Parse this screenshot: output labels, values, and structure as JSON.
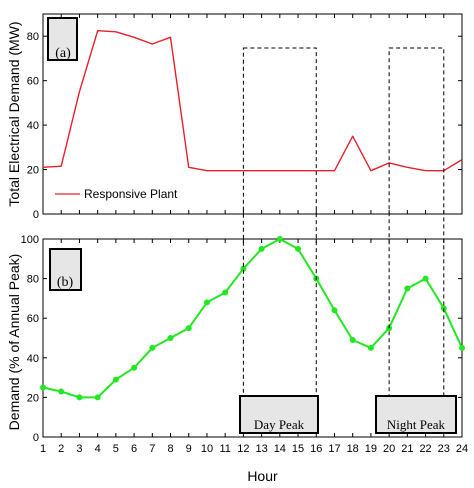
{
  "chart_data": [
    {
      "type": "line",
      "panel_label": "(a)",
      "ylabel": "Total Electrical Demand (MW)",
      "xlim": [
        1,
        24
      ],
      "ylim": [
        0,
        90
      ],
      "yticks": [
        0,
        20,
        40,
        60,
        80
      ],
      "legend": {
        "position": "bottom-left",
        "entries": [
          "Responsive Plant"
        ]
      },
      "series": [
        {
          "name": "Responsive Plant",
          "color": "#e8202a",
          "x": [
            1,
            2,
            3,
            4,
            5,
            6,
            7,
            8,
            9,
            10,
            11,
            12,
            13,
            14,
            15,
            16,
            17,
            18,
            19,
            20,
            21,
            22,
            23,
            24
          ],
          "values": [
            21,
            21.5,
            55,
            82.5,
            82,
            79.5,
            76.5,
            79.5,
            21,
            19.5,
            19.5,
            19.5,
            19.5,
            19.5,
            19.5,
            19.5,
            19.5,
            35,
            19.5,
            23,
            21,
            19.5,
            19.5,
            24.5
          ]
        }
      ]
    },
    {
      "type": "line",
      "panel_label": "(b)",
      "ylabel": "Demand (% of Annual Peak)",
      "xlabel": "Hour",
      "xlim": [
        1,
        24
      ],
      "ylim": [
        0,
        100
      ],
      "yticks": [
        0,
        20,
        40,
        60,
        80,
        100
      ],
      "xticks": [
        "1",
        "2",
        "3",
        "4",
        "5",
        "6",
        "7",
        "8",
        "9",
        "10",
        "11",
        "12",
        "13",
        "14",
        "15",
        "16",
        "17",
        "18",
        "19",
        "20",
        "21",
        "22",
        "23",
        "24"
      ],
      "series": [
        {
          "color": "#22e822",
          "x": [
            1,
            2,
            3,
            4,
            5,
            6,
            7,
            8,
            9,
            10,
            11,
            12,
            13,
            14,
            15,
            16,
            17,
            18,
            19,
            20,
            21,
            22,
            23,
            24
          ],
          "values": [
            25,
            23,
            20,
            20,
            29,
            35,
            45,
            50,
            55,
            68,
            73,
            85,
            95,
            100,
            95,
            80,
            64,
            49,
            45,
            55,
            75,
            80,
            65,
            45
          ]
        }
      ]
    }
  ],
  "annotations": {
    "day_peak": {
      "label": "Day Peak",
      "hours": [
        12,
        16
      ]
    },
    "night_peak": {
      "label": "Night Peak",
      "hours": [
        20,
        23
      ]
    }
  }
}
